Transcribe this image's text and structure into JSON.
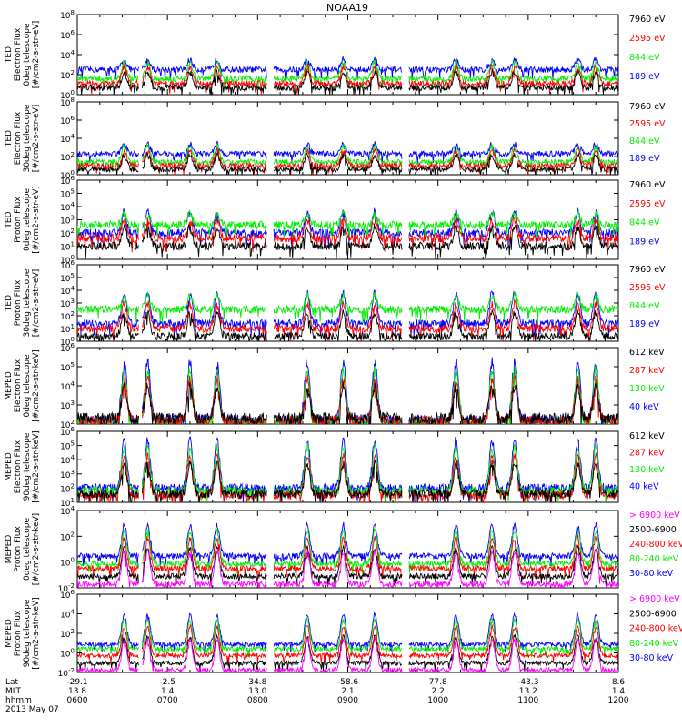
{
  "title": "NOAA19",
  "colors": {
    "black": "#000000",
    "red": "#ff0000",
    "green": "#00ee00",
    "blue": "#0000ff",
    "magenta": "#ff00ff"
  },
  "bottom_axis": {
    "row_labels": [
      "Lat",
      "MLT",
      "hhmm",
      "2013 May 07"
    ],
    "ticks": [
      {
        "lat": "-29.1",
        "mlt": "13.8",
        "hhmm": "0600"
      },
      {
        "lat": "-2.5",
        "mlt": "1.4",
        "hhmm": "0700"
      },
      {
        "lat": "34.8",
        "mlt": "13.0",
        "hhmm": "0800"
      },
      {
        "lat": "-58.6",
        "mlt": "2.1",
        "hhmm": "0900"
      },
      {
        "lat": "77.8",
        "mlt": "2.2",
        "hhmm": "1000"
      },
      {
        "lat": "-43.3",
        "mlt": "13.2",
        "hhmm": "1100"
      },
      {
        "lat": "8.6",
        "mlt": "1.4",
        "hhmm": "1200"
      }
    ]
  },
  "chart_data": [
    {
      "type": "line",
      "instrument": "TED",
      "ylabel": [
        "Electron Flux",
        "0deg telescope",
        "[#/cm2-s-str-eV]"
      ],
      "ytick_labels": [
        "10^0",
        "10^2",
        "10^4",
        "10^6",
        "10^8"
      ],
      "ylim": [
        0,
        8
      ],
      "legend": [
        {
          "text": "7960 eV",
          "color": "black"
        },
        {
          "text": "2595 eV",
          "color": "red"
        },
        {
          "text": "844 eV",
          "color": "green"
        },
        {
          "text": "189 eV",
          "color": "blue"
        }
      ],
      "xlim": [
        "0600",
        "1200"
      ],
      "levels": {
        "blue": 2.5,
        "green": 1.6,
        "red": 1.1,
        "black": 0.7
      },
      "peak": 3.5
    },
    {
      "type": "line",
      "instrument": "TED",
      "ylabel": [
        "Electron Flux",
        "30deg telescope",
        "[#/cm2-s-str-eV]"
      ],
      "ytick_labels": [
        "10^0",
        "10^2",
        "10^4",
        "10^6",
        "10^8"
      ],
      "ylim": [
        0,
        8
      ],
      "legend": [
        {
          "text": "7960 eV",
          "color": "black"
        },
        {
          "text": "2595 eV",
          "color": "red"
        },
        {
          "text": "844 eV",
          "color": "green"
        },
        {
          "text": "189 eV",
          "color": "blue"
        }
      ],
      "xlim": [
        "0600",
        "1200"
      ],
      "levels": {
        "blue": 2.3,
        "green": 1.4,
        "red": 1.0,
        "black": 0.6
      },
      "peak": 3.4
    },
    {
      "type": "line",
      "instrument": "TED",
      "ylabel": [
        "Proton Flux",
        "0deg telescope",
        "[#/cm2-s-str-eV]"
      ],
      "ytick_labels": [
        "10^0",
        "10^1",
        "10^2",
        "10^3",
        "10^4",
        "10^5",
        "10^6"
      ],
      "ylim": [
        0,
        6
      ],
      "legend": [
        {
          "text": "7960 eV",
          "color": "black"
        },
        {
          "text": "2595 eV",
          "color": "red"
        },
        {
          "text": "844 eV",
          "color": "green"
        },
        {
          "text": "189 eV",
          "color": "blue"
        }
      ],
      "xlim": [
        "0600",
        "1200"
      ],
      "levels": {
        "blue": 2.0,
        "green": 2.6,
        "red": 1.6,
        "black": 1.0
      },
      "peak": 3.6
    },
    {
      "type": "line",
      "instrument": "TED",
      "ylabel": [
        "Proton Flux",
        "30deg telescope",
        "[#/cm2-s-str-eV]"
      ],
      "ytick_labels": [
        "10^0",
        "10^1",
        "10^2",
        "10^3",
        "10^4",
        "10^5",
        "10^6"
      ],
      "ylim": [
        0,
        6
      ],
      "legend": [
        {
          "text": "7960 eV",
          "color": "black"
        },
        {
          "text": "2595 eV",
          "color": "red"
        },
        {
          "text": "844 eV",
          "color": "green"
        },
        {
          "text": "189 eV",
          "color": "blue"
        }
      ],
      "xlim": [
        "0600",
        "1200"
      ],
      "levels": {
        "blue": 1.4,
        "green": 2.5,
        "red": 1.0,
        "black": 0.4
      },
      "peak": 3.8
    },
    {
      "type": "line",
      "instrument": "MEPED",
      "ylabel": [
        "Electron Flux",
        "0deg telescope",
        "[#/cm2-s-str-keV]"
      ],
      "ytick_labels": [
        "10^2",
        "10^3",
        "10^4",
        "10^5",
        "10^6"
      ],
      "ylim": [
        2,
        6
      ],
      "legend": [
        {
          "text": "612 keV",
          "color": "black"
        },
        {
          "text": "287 keV",
          "color": "red"
        },
        {
          "text": "130 keV",
          "color": "green"
        },
        {
          "text": "40 keV",
          "color": "blue"
        }
      ],
      "xlim": [
        "0600",
        "1200"
      ],
      "levels": {
        "blue": 2.2,
        "green": 2.1,
        "red": 2.15,
        "black": 2.3
      },
      "peak": 5.3
    },
    {
      "type": "line",
      "instrument": "MEPED",
      "ylabel": [
        "Electron Flux",
        "90deg telescope",
        "[#/cm2-s-str-keV]"
      ],
      "ytick_labels": [
        "10^1",
        "10^2",
        "10^3",
        "10^4",
        "10^5",
        "10^6"
      ],
      "ylim": [
        1,
        6
      ],
      "legend": [
        {
          "text": "612 keV",
          "color": "black"
        },
        {
          "text": "287 keV",
          "color": "red"
        },
        {
          "text": "130 keV",
          "color": "green"
        },
        {
          "text": "40 keV",
          "color": "blue"
        }
      ],
      "xlim": [
        "0600",
        "1200"
      ],
      "levels": {
        "blue": 2.0,
        "green": 1.8,
        "red": 1.5,
        "black": 1.6
      },
      "peak": 5.4
    },
    {
      "type": "line",
      "instrument": "MEPED",
      "ylabel": [
        "Proton Flux",
        "0deg telescope",
        "[#/cm2-s-str-keV]"
      ],
      "ytick_labels": [
        "10^-2",
        "10^0",
        "10^2",
        "10^4"
      ],
      "ylim": [
        -3,
        5
      ],
      "legend": [
        {
          "text": "> 6900 keV",
          "color": "magenta"
        },
        {
          "text": "2500-6900",
          "color": "black"
        },
        {
          "text": "240-800 keV",
          "color": "red"
        },
        {
          "text": "80-240 keV",
          "color": "green"
        },
        {
          "text": "30-80 keV",
          "color": "blue"
        }
      ],
      "xlim": [
        "0600",
        "1200"
      ],
      "levels": {
        "blue": 0.3,
        "green": -0.5,
        "red": -1.0,
        "black": -1.8,
        "magenta": -2.6
      },
      "peak": 3.5
    },
    {
      "type": "line",
      "instrument": "MEPED",
      "ylabel": [
        "Proton Flux",
        "90deg telescope",
        "[#/cm2-s-str-keV]"
      ],
      "ytick_labels": [
        "10^-2",
        "10^0",
        "10^2",
        "10^4",
        "10^6"
      ],
      "ylim": [
        -3,
        7
      ],
      "legend": [
        {
          "text": "> 6900 keV",
          "color": "magenta"
        },
        {
          "text": "2500-6900",
          "color": "black"
        },
        {
          "text": "240-800 keV",
          "color": "red"
        },
        {
          "text": "80-240 keV",
          "color": "green"
        },
        {
          "text": "30-80 keV",
          "color": "blue"
        }
      ],
      "xlim": [
        "0600",
        "1200"
      ],
      "levels": {
        "blue": 0.6,
        "green": 0.0,
        "red": -0.8,
        "black": -1.8,
        "magenta": -2.7
      },
      "peak": 4.4
    }
  ]
}
